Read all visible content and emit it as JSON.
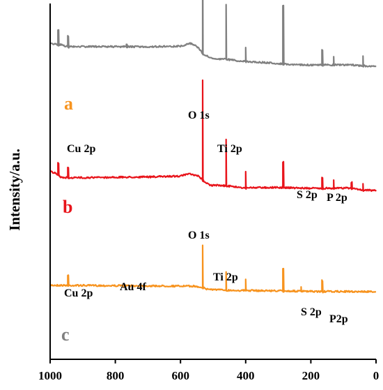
{
  "chart_data": {
    "type": "line",
    "title": "",
    "xlabel": "",
    "ylabel": "Intensity/a.u.",
    "xlim": [
      1000,
      0
    ],
    "x_ticks": [
      1000,
      800,
      600,
      400,
      200,
      0
    ],
    "x_tick_labels": [
      "1000",
      "800",
      "600",
      "400",
      "200",
      "0"
    ],
    "y_ticks_shown": false,
    "grid": false,
    "series": [
      {
        "label": "a",
        "color": "#F7931E",
        "baseline": 0.88,
        "points": [
          [
            1000,
            0.0
          ],
          [
            945,
            0.05
          ],
          [
            560,
            0.3
          ],
          [
            535,
            0.6
          ],
          [
            520,
            1.2
          ],
          [
            470,
            1.5
          ],
          [
            440,
            1.6
          ],
          [
            300,
            1.75
          ],
          [
            200,
            1.95
          ],
          [
            0,
            2.0
          ]
        ],
        "peaks": [
          [
            945,
            1.2
          ],
          [
            532,
            5.1
          ],
          [
            460,
            2.2
          ],
          [
            400,
            1.3
          ],
          [
            285,
            2.7
          ],
          [
            230,
            0.5
          ],
          [
            165,
            1.3
          ]
        ]
      },
      {
        "label": "b",
        "color": "#E8141B",
        "baseline": 0.56,
        "points": [
          [
            1000,
            0.0
          ],
          [
            985,
            0.6
          ],
          [
            965,
            1.9
          ],
          [
            940,
            2.0
          ],
          [
            700,
            1.75
          ],
          [
            600,
            1.45
          ],
          [
            575,
            0.8
          ],
          [
            545,
            1.5
          ],
          [
            531,
            2.8
          ],
          [
            510,
            4.3
          ],
          [
            480,
            4.4
          ],
          [
            460,
            4.5
          ],
          [
            410,
            5.1
          ],
          [
            300,
            5.0
          ],
          [
            250,
            5.15
          ],
          [
            200,
            5.3
          ],
          [
            80,
            5.2
          ],
          [
            40,
            5.8
          ],
          [
            0,
            6.0
          ]
        ],
        "peaks": [
          [
            975,
            1.4
          ],
          [
            945,
            1.2
          ],
          [
            532,
            12.0
          ],
          [
            460,
            5.5
          ],
          [
            400,
            2.0
          ],
          [
            285,
            3.0
          ],
          [
            165,
            1.3
          ],
          [
            130,
            1.0
          ],
          [
            75,
            0.7
          ],
          [
            40,
            0.8
          ]
        ]
      },
      {
        "label": "c",
        "color": "#808080",
        "baseline": 0.2,
        "points": [
          [
            1000,
            0.0
          ],
          [
            985,
            0.3
          ],
          [
            965,
            0.5
          ],
          [
            950,
            1.0
          ],
          [
            700,
            1.1
          ],
          [
            600,
            0.9
          ],
          [
            570,
            0.0
          ],
          [
            545,
            1.3
          ],
          [
            531,
            3.5
          ],
          [
            495,
            5.0
          ],
          [
            460,
            5.0
          ],
          [
            420,
            5.5
          ],
          [
            300,
            6.3
          ],
          [
            280,
            6.5
          ],
          [
            200,
            6.8
          ],
          [
            80,
            6.7
          ],
          [
            50,
            7.0
          ],
          [
            0,
            7.2
          ]
        ],
        "peaks": [
          [
            975,
            1.8
          ],
          [
            945,
            1.3
          ],
          [
            765,
            0.3
          ],
          [
            532,
            13.0
          ],
          [
            460,
            6.5
          ],
          [
            400,
            1.7
          ],
          [
            285,
            7.0
          ],
          [
            165,
            1.8
          ],
          [
            130,
            1.0
          ],
          [
            40,
            1.2
          ]
        ]
      }
    ],
    "annotations": [
      {
        "text": "a",
        "series": "a",
        "kind": "trace-label"
      },
      {
        "text": "O 1s",
        "series": "a",
        "kind": "peak"
      },
      {
        "text": "Cu 2p",
        "series": "b",
        "kind": "peak"
      },
      {
        "text": "Ti 2p",
        "series": "b",
        "kind": "peak"
      },
      {
        "text": "S 2p",
        "series": "b",
        "kind": "peak"
      },
      {
        "text": "P 2p",
        "series": "b",
        "kind": "peak"
      },
      {
        "text": "b",
        "series": "b",
        "kind": "trace-label"
      },
      {
        "text": "O 1s",
        "series": "b",
        "kind": "peak"
      },
      {
        "text": "Cu 2p",
        "series": "c",
        "kind": "peak"
      },
      {
        "text": "Au 4f",
        "series": "c",
        "kind": "peak"
      },
      {
        "text": "Ti 2p",
        "series": "c",
        "kind": "peak"
      },
      {
        "text": "S 2p",
        "series": "c",
        "kind": "peak"
      },
      {
        "text": "P2p",
        "series": "c",
        "kind": "peak"
      },
      {
        "text": "c",
        "series": "c",
        "kind": "trace-label"
      }
    ]
  }
}
